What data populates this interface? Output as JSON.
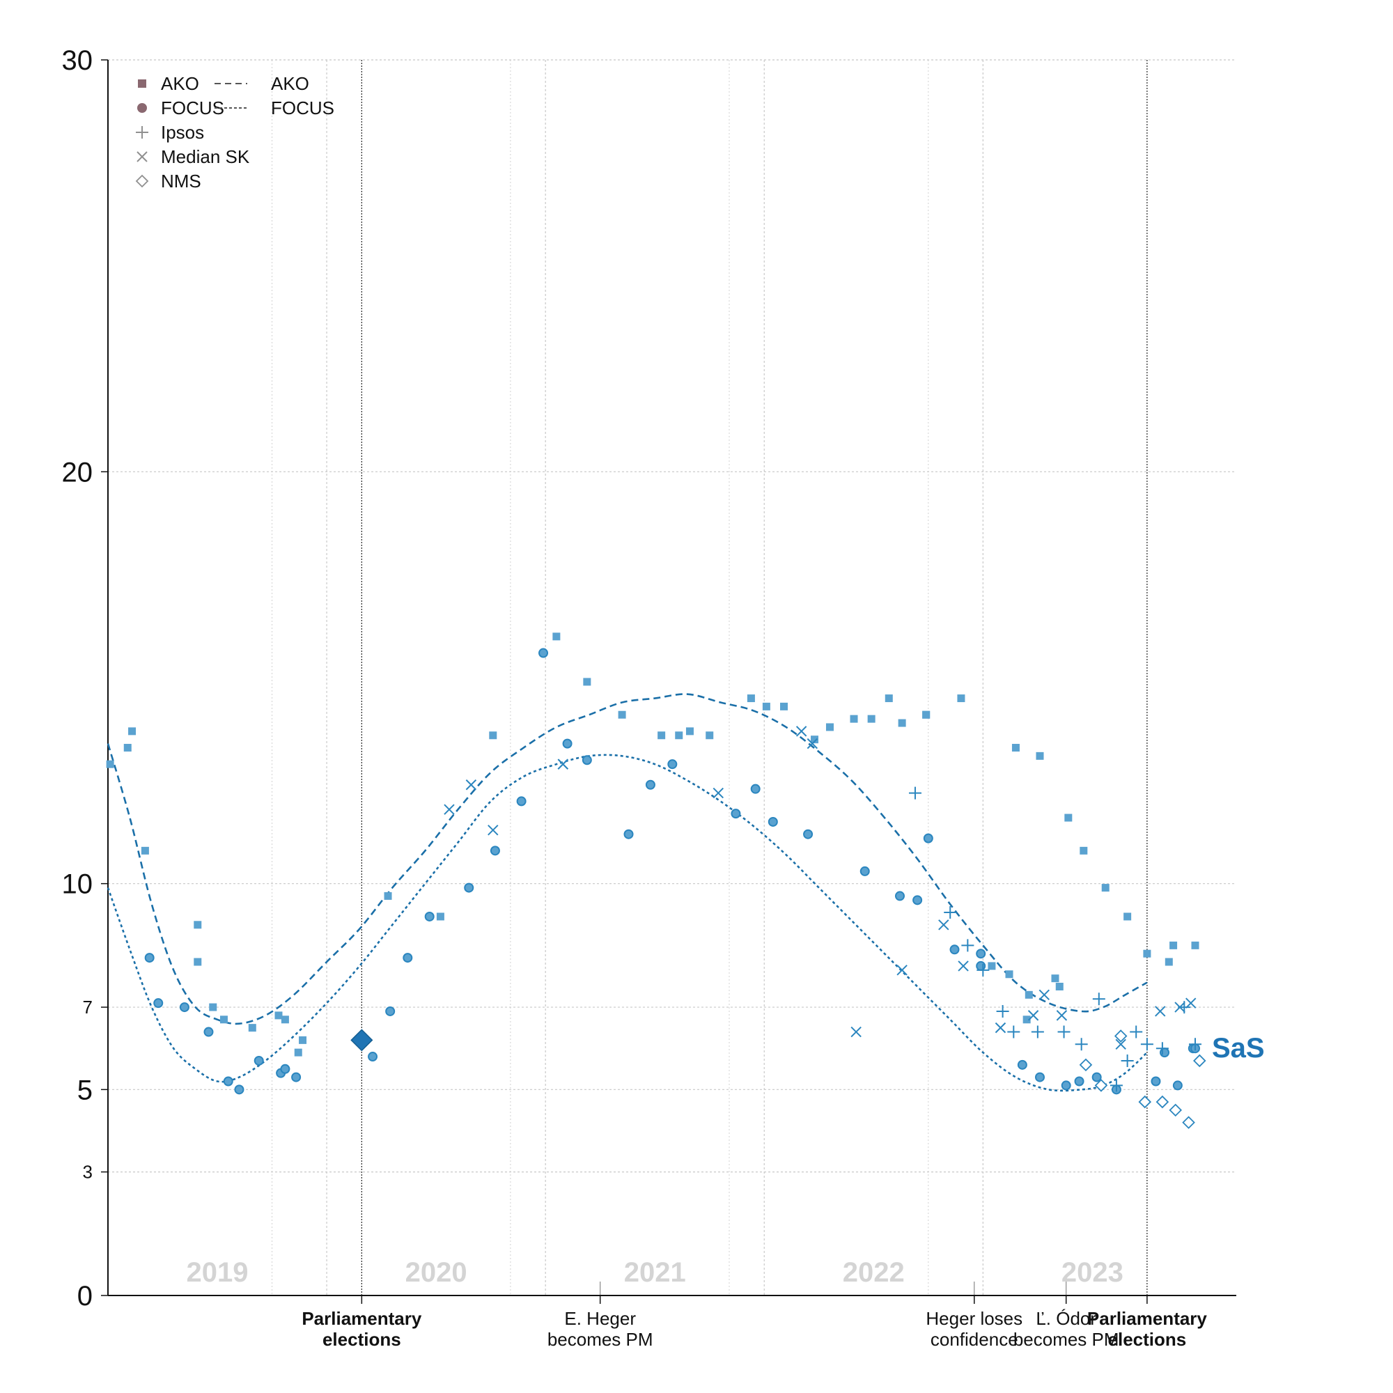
{
  "chart_data": {
    "type": "scatter",
    "party_label": "SaS",
    "colors": {
      "series": "#2b86bf",
      "fill": "#5aa2d0",
      "ako_legend": "#8a6870",
      "gray": "#909090",
      "party": "#1f74b4",
      "text": "#111111",
      "year": "#d4d4d4"
    },
    "ylim": [
      0,
      30
    ],
    "xlim": [
      2019.0,
      2023.97
    ],
    "yticks": [
      {
        "value": 0,
        "label": "0"
      },
      {
        "value": 3,
        "label": "3"
      },
      {
        "value": 5,
        "label": "5"
      },
      {
        "value": 7,
        "label": "7"
      },
      {
        "value": 10,
        "label": "10"
      },
      {
        "value": 20,
        "label": "20"
      },
      {
        "value": 30,
        "label": "30"
      }
    ],
    "year_labels": [
      {
        "x": 2019.5,
        "label": "2019"
      },
      {
        "x": 2020.5,
        "label": "2020"
      },
      {
        "x": 2021.5,
        "label": "2021"
      },
      {
        "x": 2022.5,
        "label": "2022"
      },
      {
        "x": 2023.5,
        "label": "2023"
      }
    ],
    "year_gridlines": [
      2020.0,
      2021.0,
      2022.0,
      2023.0
    ],
    "minor_gridlines": [
      2019.75,
      2020.84,
      2021.84,
      2022.75
    ],
    "events": [
      {
        "x": 2020.16,
        "lines": [
          "Parliamentary",
          "elections"
        ],
        "bold": true,
        "line": "dark"
      },
      {
        "x": 2021.25,
        "lines": [
          "E. Heger",
          "becomes PM"
        ],
        "bold": false,
        "line": "gray"
      },
      {
        "x": 2022.96,
        "lines": [
          "Heger loses",
          "confidence"
        ],
        "bold": false,
        "line": "gray"
      },
      {
        "x": 2023.38,
        "lines": [
          "Ľ. Ódor",
          "becomes PM"
        ],
        "bold": false,
        "line": "gray"
      },
      {
        "x": 2023.75,
        "lines": [
          "Parliamentary",
          "elections"
        ],
        "bold": true,
        "line": "dark"
      }
    ],
    "legend": [
      {
        "label": "AKO",
        "marker": "square"
      },
      {
        "label": "FOCUS",
        "marker": "circle"
      },
      {
        "label": "Ipsos",
        "marker": "plus"
      },
      {
        "label": "Median SK",
        "marker": "x"
      },
      {
        "label": "NMS",
        "marker": "diamond"
      }
    ],
    "legend_lines": [
      {
        "label": "AKO",
        "style": "dashed"
      },
      {
        "label": "FOCUS",
        "style": "dotted"
      }
    ],
    "election_result": {
      "x": 2020.16,
      "y": 6.2
    },
    "series": [
      {
        "name": "AKO",
        "marker": "square",
        "points": [
          [
            2019.01,
            12.9
          ],
          [
            2019.09,
            13.3
          ],
          [
            2019.11,
            13.7
          ],
          [
            2019.17,
            10.8
          ],
          [
            2019.41,
            9.0
          ],
          [
            2019.41,
            8.1
          ],
          [
            2019.48,
            7.0
          ],
          [
            2019.53,
            6.7
          ],
          [
            2019.66,
            6.5
          ],
          [
            2019.78,
            6.8
          ],
          [
            2019.81,
            6.7
          ],
          [
            2019.87,
            5.9
          ],
          [
            2019.89,
            6.2
          ],
          [
            2020.28,
            9.7
          ],
          [
            2020.52,
            9.2
          ],
          [
            2020.76,
            13.6
          ],
          [
            2021.05,
            16.0
          ],
          [
            2021.19,
            14.9
          ],
          [
            2021.35,
            14.1
          ],
          [
            2021.53,
            13.6
          ],
          [
            2021.61,
            13.6
          ],
          [
            2021.66,
            13.7
          ],
          [
            2021.75,
            13.6
          ],
          [
            2021.94,
            14.5
          ],
          [
            2022.01,
            14.3
          ],
          [
            2022.09,
            14.3
          ],
          [
            2022.23,
            13.5
          ],
          [
            2022.3,
            13.8
          ],
          [
            2022.41,
            14.0
          ],
          [
            2022.49,
            14.0
          ],
          [
            2022.57,
            14.5
          ],
          [
            2022.63,
            13.9
          ],
          [
            2022.74,
            14.1
          ],
          [
            2022.74,
            14.1
          ],
          [
            2022.9,
            14.5
          ],
          [
            2023.15,
            13.3
          ],
          [
            2023.26,
            13.1
          ],
          [
            2023.39,
            11.6
          ],
          [
            2023.46,
            10.8
          ],
          [
            2023.56,
            9.9
          ],
          [
            2023.66,
            9.2
          ],
          [
            2023.75,
            8.3
          ],
          [
            2023.85,
            8.1
          ],
          [
            2023.87,
            8.5
          ],
          [
            2023.97,
            8.5
          ],
          [
            2023.04,
            8.0
          ],
          [
            2023.12,
            7.8
          ],
          [
            2023.2,
            6.7
          ],
          [
            2023.21,
            7.3
          ],
          [
            2023.33,
            7.7
          ],
          [
            2023.35,
            7.5
          ]
        ]
      },
      {
        "name": "FOCUS",
        "marker": "circle",
        "points": [
          [
            2019.19,
            8.2
          ],
          [
            2019.23,
            7.1
          ],
          [
            2019.35,
            7.0
          ],
          [
            2019.46,
            6.4
          ],
          [
            2019.55,
            5.2
          ],
          [
            2019.6,
            5.0
          ],
          [
            2019.69,
            5.7
          ],
          [
            2019.79,
            5.4
          ],
          [
            2019.81,
            5.5
          ],
          [
            2019.86,
            5.3
          ],
          [
            2020.21,
            5.8
          ],
          [
            2020.29,
            6.9
          ],
          [
            2020.37,
            8.2
          ],
          [
            2020.47,
            9.2
          ],
          [
            2020.65,
            9.9
          ],
          [
            2020.77,
            10.8
          ],
          [
            2020.89,
            12.0
          ],
          [
            2020.99,
            15.6
          ],
          [
            2021.1,
            13.4
          ],
          [
            2021.19,
            13.0
          ],
          [
            2021.38,
            11.2
          ],
          [
            2021.48,
            12.4
          ],
          [
            2021.58,
            12.9
          ],
          [
            2021.87,
            11.7
          ],
          [
            2021.96,
            12.3
          ],
          [
            2022.04,
            11.5
          ],
          [
            2022.2,
            11.2
          ],
          [
            2022.46,
            10.3
          ],
          [
            2022.62,
            9.7
          ],
          [
            2022.7,
            9.6
          ],
          [
            2022.75,
            11.1
          ],
          [
            2022.87,
            8.4
          ],
          [
            2022.99,
            8.3
          ],
          [
            2022.99,
            8.0
          ],
          [
            2023.18,
            5.6
          ],
          [
            2023.26,
            5.3
          ],
          [
            2023.38,
            5.1
          ],
          [
            2023.44,
            5.2
          ],
          [
            2023.52,
            5.3
          ],
          [
            2023.61,
            5.0
          ],
          [
            2023.79,
            5.2
          ],
          [
            2023.83,
            5.9
          ],
          [
            2023.89,
            5.1
          ],
          [
            2023.96,
            6.0
          ],
          [
            2023.97,
            6.0
          ]
        ]
      },
      {
        "name": "Ipsos",
        "marker": "plus",
        "points": [
          [
            2022.69,
            12.2
          ],
          [
            2022.85,
            9.3
          ],
          [
            2022.93,
            8.5
          ],
          [
            2023.0,
            7.9
          ],
          [
            2023.09,
            6.9
          ],
          [
            2023.14,
            6.4
          ],
          [
            2023.25,
            6.4
          ],
          [
            2023.37,
            6.4
          ],
          [
            2023.45,
            6.1
          ],
          [
            2023.53,
            7.2
          ],
          [
            2023.61,
            5.1
          ],
          [
            2023.66,
            5.7
          ],
          [
            2023.7,
            6.4
          ],
          [
            2023.75,
            6.1
          ],
          [
            2023.82,
            6.0
          ],
          [
            2023.92,
            7.0
          ],
          [
            2023.97,
            6.1
          ]
        ]
      },
      {
        "name": "Median SK",
        "marker": "x",
        "points": [
          [
            2020.56,
            11.8
          ],
          [
            2020.66,
            12.4
          ],
          [
            2020.76,
            11.3
          ],
          [
            2021.08,
            12.9
          ],
          [
            2021.08,
            12.9
          ],
          [
            2021.79,
            12.2
          ],
          [
            2022.17,
            13.7
          ],
          [
            2022.22,
            13.4
          ],
          [
            2022.42,
            6.4
          ],
          [
            2022.63,
            7.9
          ],
          [
            2022.82,
            9.0
          ],
          [
            2022.91,
            8.0
          ],
          [
            2023.08,
            6.5
          ],
          [
            2023.23,
            6.8
          ],
          [
            2023.28,
            7.3
          ],
          [
            2023.36,
            6.8
          ],
          [
            2023.63,
            6.1
          ],
          [
            2023.81,
            6.9
          ],
          [
            2023.9,
            7.0
          ],
          [
            2023.95,
            7.1
          ]
        ]
      },
      {
        "name": "NMS",
        "marker": "diamond",
        "points": [
          [
            2023.47,
            5.6
          ],
          [
            2023.54,
            5.1
          ],
          [
            2023.63,
            6.3
          ],
          [
            2023.74,
            4.7
          ],
          [
            2023.82,
            4.7
          ],
          [
            2023.88,
            4.5
          ],
          [
            2023.94,
            4.2
          ],
          [
            2023.99,
            5.7
          ]
        ]
      }
    ],
    "trends": [
      {
        "name": "AKO trend",
        "style": "dashed",
        "points": [
          [
            2019.0,
            13.4
          ],
          [
            2019.1,
            11.6
          ],
          [
            2019.2,
            9.5
          ],
          [
            2019.3,
            7.9
          ],
          [
            2019.4,
            7.0
          ],
          [
            2019.5,
            6.7
          ],
          [
            2019.6,
            6.6
          ],
          [
            2019.72,
            6.8
          ],
          [
            2019.85,
            7.3
          ],
          [
            2020.0,
            8.1
          ],
          [
            2020.15,
            8.9
          ],
          [
            2020.3,
            9.9
          ],
          [
            2020.45,
            10.8
          ],
          [
            2020.6,
            11.8
          ],
          [
            2020.75,
            12.7
          ],
          [
            2020.9,
            13.3
          ],
          [
            2021.05,
            13.8
          ],
          [
            2021.2,
            14.1
          ],
          [
            2021.35,
            14.4
          ],
          [
            2021.5,
            14.5
          ],
          [
            2021.65,
            14.6
          ],
          [
            2021.8,
            14.4
          ],
          [
            2021.95,
            14.2
          ],
          [
            2022.1,
            13.8
          ],
          [
            2022.25,
            13.2
          ],
          [
            2022.4,
            12.5
          ],
          [
            2022.55,
            11.6
          ],
          [
            2022.7,
            10.6
          ],
          [
            2022.85,
            9.5
          ],
          [
            2023.0,
            8.5
          ],
          [
            2023.15,
            7.6
          ],
          [
            2023.3,
            7.1
          ],
          [
            2023.45,
            6.9
          ],
          [
            2023.55,
            7.0
          ],
          [
            2023.65,
            7.3
          ],
          [
            2023.75,
            7.6
          ]
        ]
      },
      {
        "name": "FOCUS trend",
        "style": "dotted",
        "points": [
          [
            2019.0,
            9.9
          ],
          [
            2019.1,
            8.4
          ],
          [
            2019.2,
            7.0
          ],
          [
            2019.3,
            6.0
          ],
          [
            2019.4,
            5.5
          ],
          [
            2019.5,
            5.2
          ],
          [
            2019.6,
            5.3
          ],
          [
            2019.72,
            5.7
          ],
          [
            2019.85,
            6.3
          ],
          [
            2020.0,
            7.1
          ],
          [
            2020.15,
            8.0
          ],
          [
            2020.3,
            9.0
          ],
          [
            2020.45,
            10.0
          ],
          [
            2020.6,
            11.0
          ],
          [
            2020.75,
            12.0
          ],
          [
            2020.9,
            12.6
          ],
          [
            2021.05,
            12.9
          ],
          [
            2021.2,
            13.1
          ],
          [
            2021.35,
            13.1
          ],
          [
            2021.5,
            12.9
          ],
          [
            2021.65,
            12.5
          ],
          [
            2021.8,
            12.0
          ],
          [
            2021.95,
            11.4
          ],
          [
            2022.1,
            10.7
          ],
          [
            2022.25,
            9.9
          ],
          [
            2022.4,
            9.1
          ],
          [
            2022.55,
            8.3
          ],
          [
            2022.7,
            7.5
          ],
          [
            2022.85,
            6.7
          ],
          [
            2023.0,
            5.9
          ],
          [
            2023.15,
            5.3
          ],
          [
            2023.3,
            5.0
          ],
          [
            2023.45,
            5.0
          ],
          [
            2023.55,
            5.1
          ],
          [
            2023.65,
            5.4
          ],
          [
            2023.75,
            5.9
          ]
        ]
      }
    ]
  }
}
